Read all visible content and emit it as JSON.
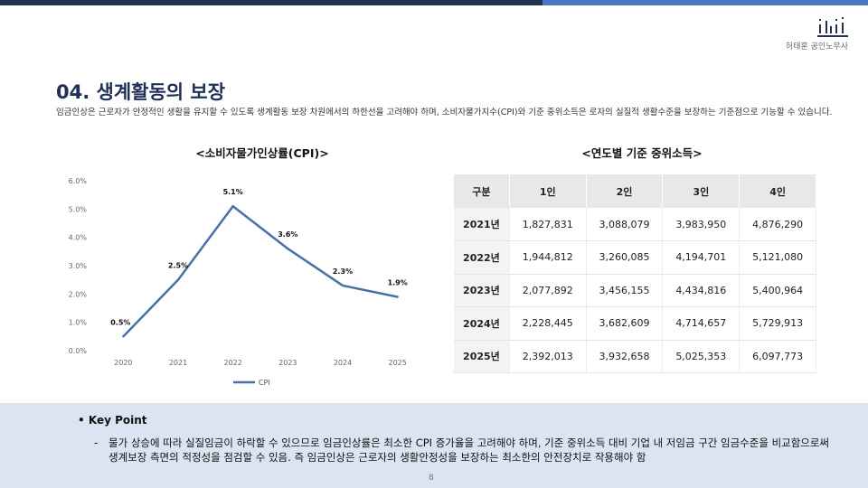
{
  "header": {
    "firm_name": "허태훈 공인노무사"
  },
  "title": "04. 생계활동의 보장",
  "intro": "임금인상은 근로자가 안정적인 생활을 유지할 수 있도록 생계활동 보장 차원에서의 하한선을 고려해야 하며, 소비자물가지수(CPI)와 기준 중위소득은 로자의 실질적 생활수준을 보장하는 기준점으로 기능할 수 있습니다.",
  "chart_data": {
    "type": "line",
    "title": "<소비자물가인상률(CPI)>",
    "x": [
      "2020",
      "2021",
      "2022",
      "2023",
      "2024",
      "2025"
    ],
    "series": [
      {
        "name": "CPI",
        "values": [
          0.5,
          2.5,
          5.1,
          3.6,
          2.3,
          1.9
        ],
        "labels": [
          "0.5%",
          "2.5%",
          "5.1%",
          "3.6%",
          "2.3%",
          "1.9%"
        ]
      }
    ],
    "yticks": [
      "0.0%",
      "1.0%",
      "2.0%",
      "3.0%",
      "4.0%",
      "5.0%",
      "6.0%"
    ],
    "ylim": [
      0,
      6
    ],
    "legend": "bottom",
    "color": "#4a6fa8"
  },
  "table": {
    "title": "<연도별 기준 중위소득>",
    "headers": [
      "구분",
      "1인",
      "2인",
      "3인",
      "4인"
    ],
    "rows": [
      [
        "2021년",
        "1,827,831",
        "3,088,079",
        "3,983,950",
        "4,876,290"
      ],
      [
        "2022년",
        "1,944,812",
        "3,260,085",
        "4,194,701",
        "5,121,080"
      ],
      [
        "2023년",
        "2,077,892",
        "3,456,155",
        "4,434,816",
        "5,400,964"
      ],
      [
        "2024년",
        "2,228,445",
        "3,682,609",
        "4,714,657",
        "5,729,913"
      ],
      [
        "2025년",
        "2,392,013",
        "3,932,658",
        "5,025,353",
        "6,097,773"
      ]
    ]
  },
  "key_point": {
    "heading": "Key Point",
    "bullet": "•",
    "dash": "-",
    "text": "물가 상승에 따라 실질임금이 하락할 수 있으므로 임금인상률은 최소한 CPI 증가율을 고려해야 하며, 기준 중위소득 대비 기업 내 저임금 구간 임금수준을 비교함으로써 생계보장 측면의 적정성을 점검할 수 있음. 즉 임금인상은 근로자의 생활안정성을 보장하는 최소한의 안전장치로 작용해야 함"
  },
  "page_number": "8"
}
